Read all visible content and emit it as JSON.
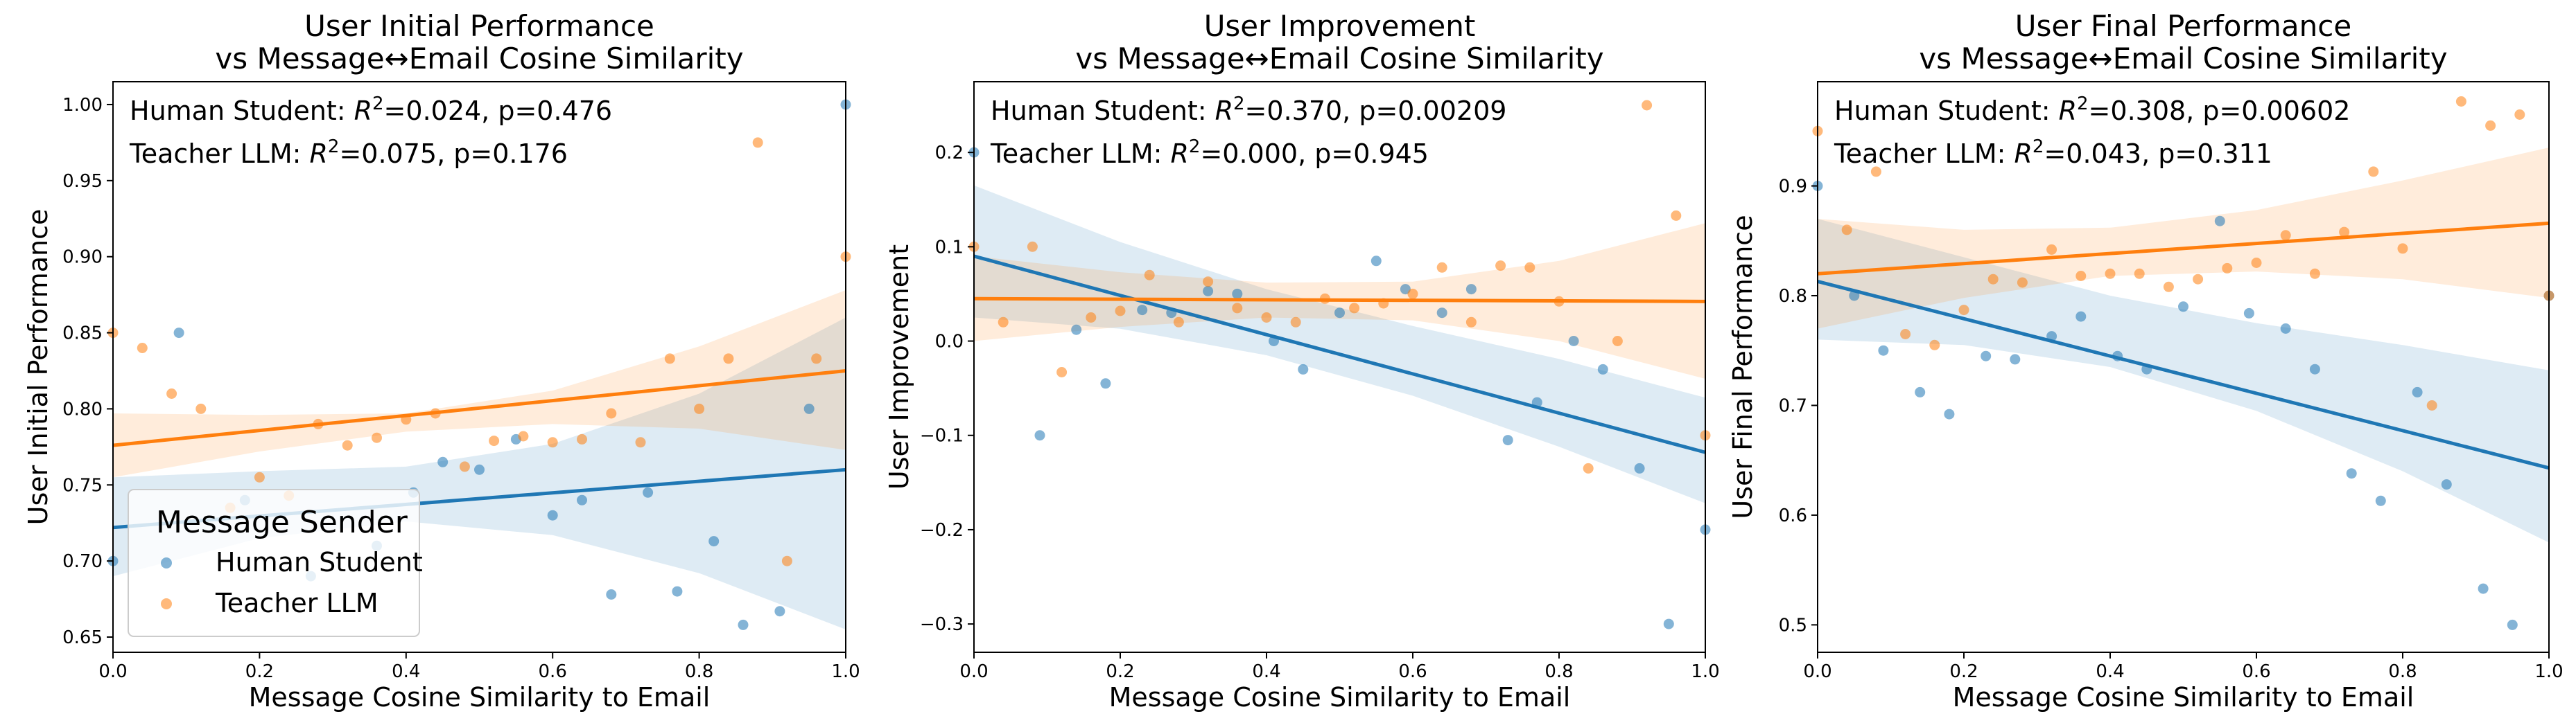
{
  "colors": {
    "human": "#1f77b4",
    "teacher": "#ff7f0e",
    "human_band": "#1f77b4",
    "teacher_band": "#ff7f0e"
  },
  "legend": {
    "title": "Message Sender",
    "entries": [
      "Human Student",
      "Teacher LLM"
    ]
  },
  "chart_data": [
    {
      "type": "scatter",
      "title": "User Initial Performance",
      "subtitle": "vs Message↔Email Cosine Similarity",
      "xlabel": "Message Cosine Similarity to Email",
      "ylabel": "User Initial Performance",
      "xlim": [
        0,
        1
      ],
      "ylim": [
        0.64,
        1.015
      ],
      "xticks": [
        0,
        0.2,
        0.4,
        0.6,
        0.8,
        1.0
      ],
      "xtick_labels": [
        "0.0",
        "0.2",
        "0.4",
        "0.6",
        "0.8",
        "1.0"
      ],
      "yticks": [
        0.65,
        0.7,
        0.75,
        0.8,
        0.85,
        0.9,
        0.95,
        1.0
      ],
      "ytick_labels": [
        "0.65",
        "0.70",
        "0.75",
        "0.80",
        "0.85",
        "0.90",
        "0.95",
        "1.00"
      ],
      "legend_position": "lower-left",
      "stats": [
        {
          "prefix": "Human Student: ",
          "r2": "=0.024, p=0.476"
        },
        {
          "prefix": "Teacher LLM: ",
          "r2": "=0.075, p=0.176"
        }
      ],
      "series": [
        {
          "name": "Human Student",
          "x": [
            0.0,
            0.09,
            0.18,
            0.27,
            0.36,
            0.41,
            0.45,
            0.5,
            0.55,
            0.6,
            0.64,
            0.68,
            0.73,
            0.77,
            0.82,
            0.86,
            0.91,
            0.95,
            1.0
          ],
          "y": [
            0.7,
            0.85,
            0.74,
            0.69,
            0.71,
            0.745,
            0.765,
            0.76,
            0.78,
            0.73,
            0.74,
            0.678,
            0.745,
            0.68,
            0.713,
            0.658,
            0.667,
            0.8,
            1.0
          ],
          "fit": [
            0.722,
            0.76
          ],
          "band_low": [
            0.69,
            0.715,
            0.726,
            0.717,
            0.692,
            0.655
          ],
          "band_high": [
            0.755,
            0.759,
            0.762,
            0.777,
            0.81,
            0.86
          ]
        },
        {
          "name": "Teacher LLM",
          "x": [
            0.0,
            0.04,
            0.08,
            0.12,
            0.16,
            0.2,
            0.24,
            0.28,
            0.32,
            0.36,
            0.4,
            0.44,
            0.48,
            0.52,
            0.56,
            0.6,
            0.64,
            0.68,
            0.72,
            0.76,
            0.8,
            0.84,
            0.88,
            0.92,
            0.96,
            1.0
          ],
          "y": [
            0.85,
            0.84,
            0.81,
            0.8,
            0.735,
            0.755,
            0.743,
            0.79,
            0.776,
            0.781,
            0.793,
            0.797,
            0.762,
            0.779,
            0.782,
            0.778,
            0.78,
            0.797,
            0.778,
            0.833,
            0.8,
            0.833,
            0.975,
            0.7,
            0.833,
            0.9
          ],
          "fit": [
            0.776,
            0.825
          ],
          "band_low": [
            0.755,
            0.772,
            0.785,
            0.79,
            0.787,
            0.773
          ],
          "band_high": [
            0.797,
            0.796,
            0.797,
            0.812,
            0.841,
            0.878
          ]
        }
      ]
    },
    {
      "type": "scatter",
      "title": "User Improvement",
      "subtitle": "vs Message↔Email Cosine Similarity",
      "xlabel": "Message Cosine Similarity to Email",
      "ylabel": "User Improvement",
      "xlim": [
        0,
        1
      ],
      "ylim": [
        -0.33,
        0.275
      ],
      "xticks": [
        0,
        0.2,
        0.4,
        0.6,
        0.8,
        1.0
      ],
      "xtick_labels": [
        "0.0",
        "0.2",
        "0.4",
        "0.6",
        "0.8",
        "1.0"
      ],
      "yticks": [
        -0.3,
        -0.2,
        -0.1,
        0.0,
        0.1,
        0.2
      ],
      "ytick_labels": [
        "−0.3",
        "−0.2",
        "−0.1",
        "0.0",
        "0.1",
        "0.2"
      ],
      "stats": [
        {
          "prefix": "Human Student: ",
          "r2": "=0.370, p=0.00209"
        },
        {
          "prefix": "Teacher LLM: ",
          "r2": "=0.000, p=0.945"
        }
      ],
      "series": [
        {
          "name": "Human Student",
          "x": [
            0.0,
            0.09,
            0.14,
            0.18,
            0.23,
            0.27,
            0.32,
            0.36,
            0.41,
            0.45,
            0.5,
            0.55,
            0.59,
            0.64,
            0.68,
            0.73,
            0.77,
            0.82,
            0.86,
            0.91,
            0.95,
            1.0
          ],
          "y": [
            0.2,
            -0.1,
            0.012,
            -0.045,
            0.033,
            0.03,
            0.053,
            0.05,
            0.0,
            -0.03,
            0.03,
            0.085,
            0.055,
            0.03,
            0.055,
            -0.105,
            -0.065,
            0.0,
            -0.03,
            -0.135,
            -0.3,
            -0.2
          ],
          "fit": [
            0.09,
            -0.118
          ],
          "band_low": [
            0.025,
            0.013,
            -0.015,
            -0.058,
            -0.112,
            -0.172
          ],
          "band_high": [
            0.165,
            0.105,
            0.055,
            0.016,
            -0.019,
            -0.06
          ]
        },
        {
          "name": "Teacher LLM",
          "x": [
            0.0,
            0.04,
            0.08,
            0.12,
            0.16,
            0.2,
            0.24,
            0.28,
            0.32,
            0.36,
            0.4,
            0.44,
            0.48,
            0.52,
            0.56,
            0.6,
            0.64,
            0.68,
            0.72,
            0.76,
            0.8,
            0.84,
            0.88,
            0.92,
            0.96,
            1.0
          ],
          "y": [
            0.1,
            0.02,
            0.1,
            -0.033,
            0.025,
            0.032,
            0.07,
            0.02,
            0.063,
            0.035,
            0.025,
            0.02,
            0.045,
            0.035,
            0.04,
            0.05,
            0.078,
            0.02,
            0.08,
            0.078,
            0.042,
            -0.135,
            0.0,
            0.25,
            0.133,
            -0.1
          ],
          "fit": [
            0.045,
            0.042
          ],
          "band_low": [
            0.0,
            0.015,
            0.025,
            0.022,
            0.0,
            -0.04
          ],
          "band_high": [
            0.09,
            0.073,
            0.062,
            0.063,
            0.085,
            0.125
          ]
        }
      ]
    },
    {
      "type": "scatter",
      "title": "User Final Performance",
      "subtitle": "vs Message↔Email Cosine Similarity",
      "xlabel": "Message Cosine Similarity to Email",
      "ylabel": "User Final Performance",
      "xlim": [
        0,
        1
      ],
      "ylim": [
        0.475,
        0.995
      ],
      "xticks": [
        0,
        0.2,
        0.4,
        0.6,
        0.8,
        1.0
      ],
      "xtick_labels": [
        "0.0",
        "0.2",
        "0.4",
        "0.6",
        "0.8",
        "1.0"
      ],
      "yticks": [
        0.5,
        0.6,
        0.7,
        0.8,
        0.9
      ],
      "ytick_labels": [
        "0.5",
        "0.6",
        "0.7",
        "0.8",
        "0.9"
      ],
      "stats": [
        {
          "prefix": "Human Student: ",
          "r2": "=0.308, p=0.00602"
        },
        {
          "prefix": "Teacher LLM: ",
          "r2": "=0.043, p=0.311"
        }
      ],
      "series": [
        {
          "name": "Human Student",
          "x": [
            0.0,
            0.05,
            0.09,
            0.14,
            0.18,
            0.23,
            0.27,
            0.32,
            0.36,
            0.41,
            0.45,
            0.5,
            0.55,
            0.59,
            0.64,
            0.68,
            0.73,
            0.77,
            0.82,
            0.86,
            0.91,
            0.95,
            1.0
          ],
          "y": [
            0.9,
            0.8,
            0.75,
            0.712,
            0.692,
            0.745,
            0.742,
            0.763,
            0.781,
            0.745,
            0.733,
            0.79,
            0.868,
            0.784,
            0.77,
            0.733,
            0.638,
            0.613,
            0.712,
            0.628,
            0.533,
            0.5,
            0.8
          ],
          "fit": [
            0.813,
            0.643
          ],
          "band_low": [
            0.76,
            0.755,
            0.735,
            0.695,
            0.64,
            0.575
          ],
          "band_high": [
            0.87,
            0.835,
            0.8,
            0.775,
            0.755,
            0.732
          ]
        },
        {
          "name": "Teacher LLM",
          "x": [
            0.0,
            0.04,
            0.08,
            0.12,
            0.16,
            0.2,
            0.24,
            0.28,
            0.32,
            0.36,
            0.4,
            0.44,
            0.48,
            0.52,
            0.56,
            0.6,
            0.64,
            0.68,
            0.72,
            0.76,
            0.8,
            0.84,
            0.88,
            0.92,
            0.96,
            1.0
          ],
          "y": [
            0.95,
            0.86,
            0.913,
            0.765,
            0.755,
            0.787,
            0.815,
            0.812,
            0.842,
            0.818,
            0.82,
            0.82,
            0.808,
            0.815,
            0.825,
            0.83,
            0.855,
            0.82,
            0.858,
            0.913,
            0.843,
            0.7,
            0.977,
            0.955,
            0.965,
            0.8
          ],
          "fit": [
            0.82,
            0.866
          ],
          "band_low": [
            0.77,
            0.798,
            0.818,
            0.822,
            0.815,
            0.798
          ],
          "band_high": [
            0.87,
            0.86,
            0.862,
            0.878,
            0.905,
            0.935
          ]
        }
      ]
    }
  ]
}
